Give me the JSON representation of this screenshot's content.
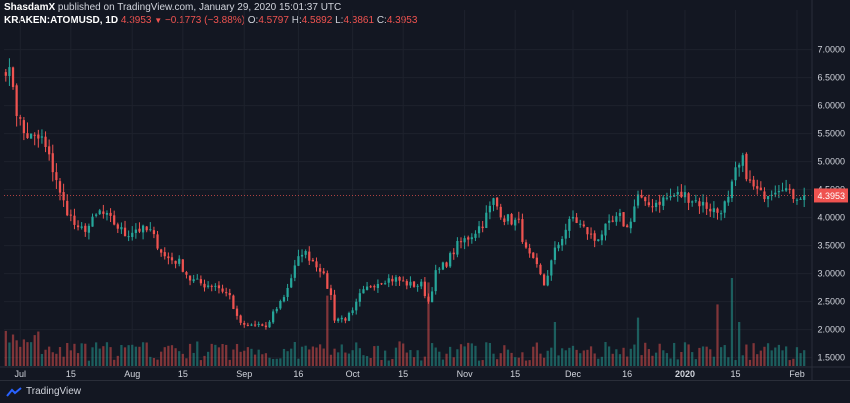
{
  "header": {
    "author": "ShasdamX",
    "published_text": "published on TradingView.com, January 29, 2020 15:01:37 UTC",
    "symbol": "KRAKEN:ATOMUSD, 1D",
    "last": "4.3953",
    "change": "−0.1773 (−3.88%)",
    "o_label": "O:",
    "o_value": "4.5797",
    "h_label": "H:",
    "h_value": "4.5892",
    "l_label": "L:",
    "l_value": "4.3861",
    "c_label": "C:",
    "c_value": "4.3953"
  },
  "footer": {
    "brand": "TradingView"
  },
  "colors": {
    "bg": "#131722",
    "up": "#26a69a",
    "down": "#ef5350",
    "grid": "#1e222d",
    "text": "#d1d4dc"
  },
  "chart_data": {
    "type": "candlestick",
    "symbol": "KRAKEN:ATOMUSD",
    "interval": "1D",
    "ylim": [
      1.35,
      7.35
    ],
    "y_ticks": [
      "7.0000",
      "6.5000",
      "6.0000",
      "5.5000",
      "5.0000",
      "4.5000",
      "4.0000",
      "3.5000",
      "3.0000",
      "2.5000",
      "2.0000",
      "1.5000"
    ],
    "y_tick_values": [
      7.0,
      6.5,
      6.0,
      5.5,
      5.0,
      4.5,
      4.0,
      3.5,
      3.0,
      2.5,
      2.0,
      1.5
    ],
    "x_ticks": [
      {
        "label": "Jul",
        "day": 4
      },
      {
        "label": "15",
        "day": 18
      },
      {
        "label": "Aug",
        "day": 35
      },
      {
        "label": "15",
        "day": 49
      },
      {
        "label": "Sep",
        "day": 66
      },
      {
        "label": "16",
        "day": 81
      },
      {
        "label": "Oct",
        "day": 96
      },
      {
        "label": "15",
        "day": 110
      },
      {
        "label": "Nov",
        "day": 127
      },
      {
        "label": "15",
        "day": 141
      },
      {
        "label": "Dec",
        "day": 157
      },
      {
        "label": "16",
        "day": 172
      },
      {
        "label": "2020",
        "day": 188
      },
      {
        "label": "15",
        "day": 202
      },
      {
        "label": "Feb",
        "day": 219
      }
    ],
    "last_price_label": "4.3953",
    "last_price": 4.3953,
    "anchors": [
      [
        0,
        6.7
      ],
      [
        2,
        6.4
      ],
      [
        3,
        5.9
      ],
      [
        5,
        5.5
      ],
      [
        8,
        5.4
      ],
      [
        10,
        5.4
      ],
      [
        14,
        4.7
      ],
      [
        15,
        4.4
      ],
      [
        18,
        4.0
      ],
      [
        20,
        3.75
      ],
      [
        23,
        3.85
      ],
      [
        26,
        4.1
      ],
      [
        30,
        3.9
      ],
      [
        33,
        3.7
      ],
      [
        36,
        3.8
      ],
      [
        40,
        3.75
      ],
      [
        44,
        3.3
      ],
      [
        48,
        3.2
      ],
      [
        51,
        2.9
      ],
      [
        55,
        2.8
      ],
      [
        58,
        2.8
      ],
      [
        62,
        2.6
      ],
      [
        64,
        2.2
      ],
      [
        66,
        2.05
      ],
      [
        70,
        2.1
      ],
      [
        72,
        2.0
      ],
      [
        74,
        2.3
      ],
      [
        77,
        2.6
      ],
      [
        80,
        3.1
      ],
      [
        82,
        3.4
      ],
      [
        84,
        3.3
      ],
      [
        87,
        3.1
      ],
      [
        90,
        2.6
      ],
      [
        91,
        2.2
      ],
      [
        94,
        2.2
      ],
      [
        96,
        2.3
      ],
      [
        98,
        2.6
      ],
      [
        101,
        2.8
      ],
      [
        105,
        2.9
      ],
      [
        108,
        2.9
      ],
      [
        112,
        2.8
      ],
      [
        115,
        2.8
      ],
      [
        117,
        2.5
      ],
      [
        119,
        3.0
      ],
      [
        122,
        3.2
      ],
      [
        125,
        3.5
      ],
      [
        129,
        3.7
      ],
      [
        132,
        3.9
      ],
      [
        135,
        4.3
      ],
      [
        138,
        4.0
      ],
      [
        142,
        3.9
      ],
      [
        144,
        3.4
      ],
      [
        147,
        3.1
      ],
      [
        149,
        2.8
      ],
      [
        152,
        3.4
      ],
      [
        155,
        3.8
      ],
      [
        157,
        4.0
      ],
      [
        160,
        3.8
      ],
      [
        163,
        3.6
      ],
      [
        166,
        3.8
      ],
      [
        170,
        4.0
      ],
      [
        172,
        3.8
      ],
      [
        175,
        4.4
      ],
      [
        177,
        4.2
      ],
      [
        181,
        4.3
      ],
      [
        185,
        4.4
      ],
      [
        188,
        4.4
      ],
      [
        191,
        4.3
      ],
      [
        194,
        4.2
      ],
      [
        197,
        4.1
      ],
      [
        200,
        4.3
      ],
      [
        202,
        4.8
      ],
      [
        204,
        5.0
      ],
      [
        206,
        4.6
      ],
      [
        209,
        4.4
      ],
      [
        212,
        4.5
      ],
      [
        215,
        4.6
      ],
      [
        217,
        4.4
      ]
    ],
    "volume_spikes": [
      [
        89,
        0.8
      ],
      [
        117,
        0.95
      ],
      [
        152,
        0.5
      ],
      [
        175,
        0.55
      ],
      [
        197,
        0.7
      ],
      [
        201,
        1.0
      ],
      [
        203,
        0.5
      ]
    ]
  }
}
